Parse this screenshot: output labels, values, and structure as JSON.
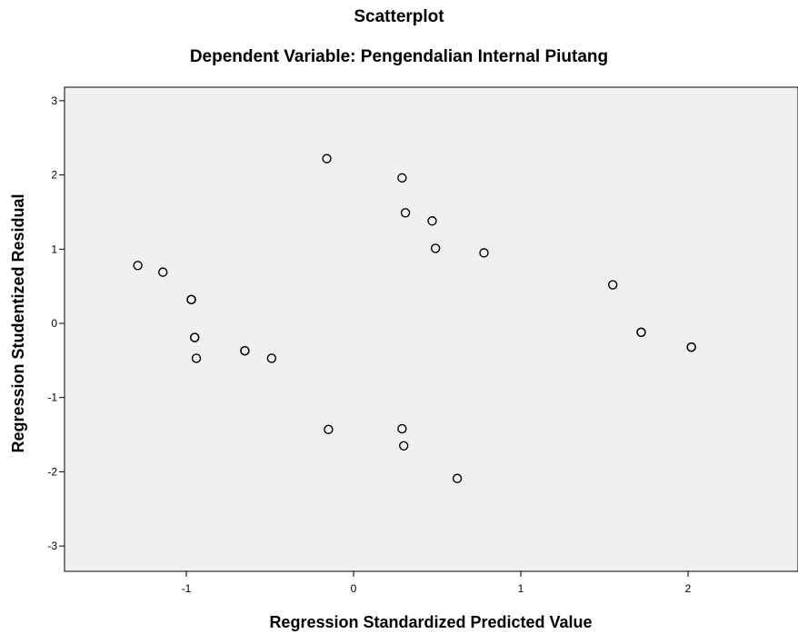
{
  "chart_data": {
    "type": "scatter",
    "title": "Scatterplot",
    "subtitle": "Dependent Variable: Pengendalian Internal Piutang",
    "xlabel": "Regression Standardized Predicted Value",
    "ylabel": "Regression Studentized Residual",
    "xlim": [
      -1.7,
      2.7
    ],
    "ylim": [
      -3.3,
      3.2
    ],
    "xticks": [
      -1,
      0,
      1,
      2
    ],
    "yticks": [
      -3,
      -2,
      -1,
      0,
      1,
      2,
      3
    ],
    "xtick_labels": [
      "-1",
      "0",
      "1",
      "2"
    ],
    "ytick_labels": [
      "-3",
      "-2",
      "-1",
      "0",
      "1",
      "2",
      "3"
    ],
    "grid": false,
    "marker": "open-circle",
    "plot_background": "#f0f0f0",
    "points": [
      {
        "x": -1.29,
        "y": 0.78
      },
      {
        "x": -1.14,
        "y": 0.69
      },
      {
        "x": -0.97,
        "y": 0.32
      },
      {
        "x": -0.97,
        "y": 0.32
      },
      {
        "x": -0.95,
        "y": -0.19
      },
      {
        "x": -0.95,
        "y": -0.19
      },
      {
        "x": -0.94,
        "y": -0.47
      },
      {
        "x": -0.65,
        "y": -0.37
      },
      {
        "x": -0.65,
        "y": -0.37
      },
      {
        "x": -0.49,
        "y": -0.47
      },
      {
        "x": -0.16,
        "y": 2.22
      },
      {
        "x": -0.15,
        "y": -1.43
      },
      {
        "x": 0.29,
        "y": 1.96
      },
      {
        "x": 0.29,
        "y": -1.42
      },
      {
        "x": 0.3,
        "y": -1.65
      },
      {
        "x": 0.31,
        "y": 1.49
      },
      {
        "x": 0.47,
        "y": 1.38
      },
      {
        "x": 0.49,
        "y": 1.01
      },
      {
        "x": 0.62,
        "y": -2.09
      },
      {
        "x": 0.78,
        "y": 0.95
      },
      {
        "x": 1.55,
        "y": 0.52
      },
      {
        "x": 1.72,
        "y": -0.12
      },
      {
        "x": 1.72,
        "y": -0.12
      },
      {
        "x": 2.02,
        "y": -0.32
      },
      {
        "x": 2.02,
        "y": -0.32
      }
    ]
  }
}
